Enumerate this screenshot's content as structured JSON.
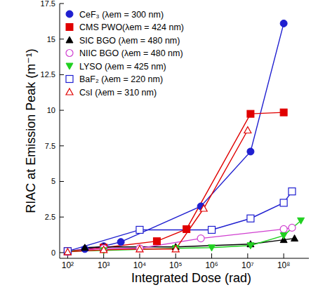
{
  "chart_data": {
    "type": "line",
    "x_label": "Integrated Dose (rad)",
    "y_label": "RIAC at Emission Peak (m⁻¹)",
    "log": "x",
    "legend": "top-left",
    "xlim": [
      60,
      500000000
    ],
    "xticks": [
      {
        "value": 100,
        "label": "10²"
      },
      {
        "value": 1000,
        "label": "10³"
      },
      {
        "value": 10000,
        "label": "10⁴"
      },
      {
        "value": 100000,
        "label": "10⁵"
      },
      {
        "value": 1000000,
        "label": "10⁶"
      },
      {
        "value": 10000000,
        "label": "10⁷"
      },
      {
        "value": 100000000,
        "label": "10⁸"
      }
    ],
    "ylim": [
      -0.4,
      17.5
    ],
    "yticks": [
      0,
      2.5,
      5,
      7.5,
      10,
      12.5,
      15,
      17.5
    ],
    "series": [
      {
        "name": "CeF₃ (λem = 300 nm)",
        "color": "#1f1fd0",
        "marker": "circle",
        "x": [
          100,
          300,
          1000,
          3000,
          500000,
          12000000,
          100000000
        ],
        "values": [
          0.1,
          0.25,
          0.45,
          0.75,
          3.25,
          7.1,
          16.1
        ]
      },
      {
        "name": "CMS PWO(λem = 424 nm)",
        "color": "#e00000",
        "marker": "square",
        "x": [
          100,
          1000,
          30000,
          200000,
          12000000,
          100000000
        ],
        "values": [
          0.1,
          0.35,
          0.8,
          1.65,
          9.75,
          9.85
        ]
      },
      {
        "name": "SIC BGO (λem = 480 nm)",
        "color": "#000000",
        "marker": "triangle",
        "x": [
          300,
          1000,
          100000,
          12000000,
          100000000,
          200000000
        ],
        "values": [
          0.35,
          0.4,
          0.4,
          0.6,
          0.9,
          1.0
        ]
      },
      {
        "name": "NIIC BGO (λem = 480 nm)",
        "color": "#d040d0",
        "marker": "circle-open",
        "x": [
          100,
          1000,
          10000,
          500000,
          100000000,
          170000000
        ],
        "values": [
          0.05,
          0.3,
          0.3,
          1.0,
          1.65,
          1.75
        ]
      },
      {
        "name": "LYSO (λem = 425 nm)",
        "color": "#20d020",
        "marker": "triangle-down",
        "x": [
          100,
          1000,
          100000,
          1000000,
          12000000,
          100000000,
          300000000
        ],
        "values": [
          0.1,
          0.15,
          0.3,
          0.35,
          0.5,
          1.2,
          2.25
        ]
      },
      {
        "name": "BaF₂ (λem = 220 nm)",
        "color": "#1f1fd0",
        "marker": "square-open",
        "x": [
          100,
          10000,
          1000000,
          12000000,
          100000000,
          170000000
        ],
        "values": [
          0.1,
          1.6,
          1.6,
          2.4,
          3.5,
          4.3
        ]
      },
      {
        "name": "CsI (λem = 310 nm)",
        "color": "#e00000",
        "marker": "triangle-open",
        "x": [
          100,
          1000,
          10000,
          100000,
          600000,
          10000000
        ],
        "values": [
          0.05,
          0.2,
          0.25,
          0.25,
          3.1,
          8.6
        ]
      }
    ]
  }
}
